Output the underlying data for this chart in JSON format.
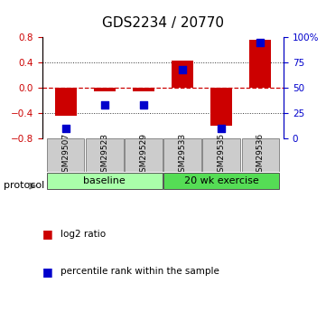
{
  "title": "GDS2234 / 20770",
  "samples": [
    "GSM29507",
    "GSM29523",
    "GSM29529",
    "GSM29533",
    "GSM29535",
    "GSM29536"
  ],
  "log2_ratio": [
    -0.43,
    -0.05,
    -0.05,
    0.43,
    -0.6,
    0.77
  ],
  "percentile_rank": [
    10,
    33,
    33,
    68,
    10,
    95
  ],
  "ylim_left": [
    -0.8,
    0.8
  ],
  "ylim_right": [
    0,
    100
  ],
  "yticks_left": [
    -0.8,
    -0.4,
    0,
    0.4,
    0.8
  ],
  "yticks_right": [
    0,
    25,
    50,
    75,
    100
  ],
  "ytick_labels_right": [
    "0",
    "25",
    "50",
    "75",
    "100%"
  ],
  "groups": [
    {
      "label": "baseline",
      "start": 0,
      "end": 3,
      "color": "#aaffaa"
    },
    {
      "label": "20 wk exercise",
      "start": 3,
      "end": 6,
      "color": "#55dd55"
    }
  ],
  "bar_color": "#cc0000",
  "dot_color": "#0000cc",
  "zero_line_color": "#cc0000",
  "dotted_line_color": "#333333",
  "protocol_label": "protocol",
  "legend_items": [
    {
      "color": "#cc0000",
      "label": "log2 ratio"
    },
    {
      "color": "#0000cc",
      "label": "percentile rank within the sample"
    }
  ],
  "bar_width": 0.55,
  "dot_size": 40,
  "title_fontsize": 11,
  "tick_fontsize": 7.5,
  "sample_fontsize": 6.5,
  "legend_fontsize": 7.5,
  "group_fontsize": 8,
  "protocol_fontsize": 8
}
